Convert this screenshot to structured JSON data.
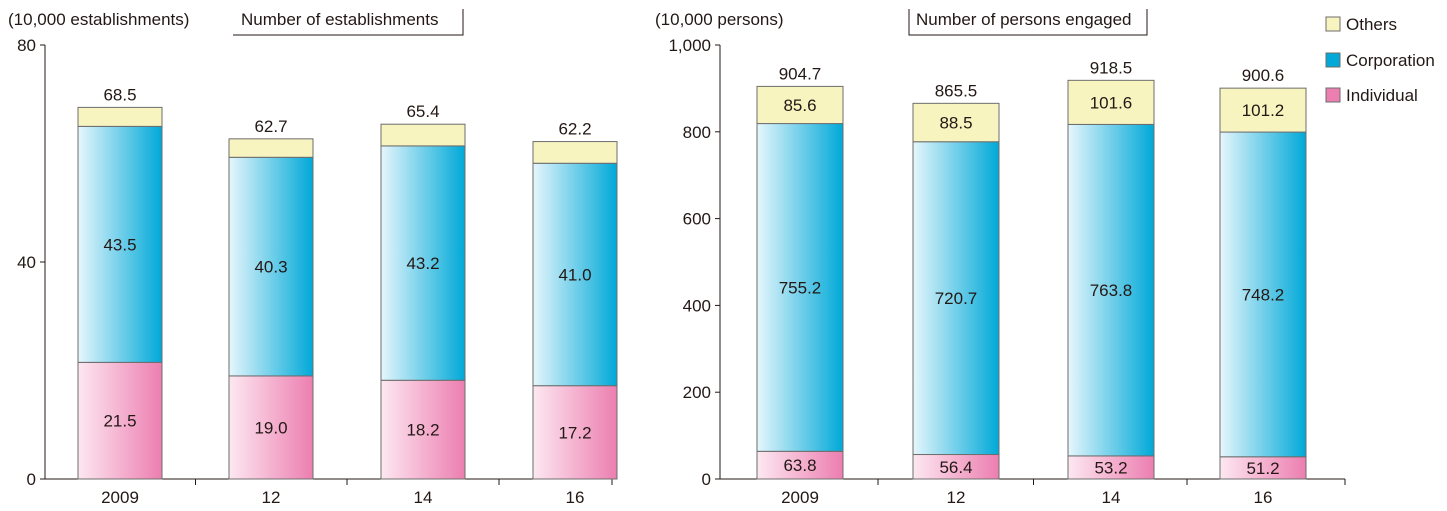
{
  "chart_data": [
    {
      "type": "bar",
      "stacked": true,
      "title": "Number of establishments",
      "ylabel": "(10,000 establishments)",
      "categories": [
        "2009",
        "12",
        "14",
        "16"
      ],
      "ylim": [
        0,
        80
      ],
      "yticks": [
        0,
        40,
        80
      ],
      "ytick_labels": [
        "0",
        "40",
        "80"
      ],
      "series": [
        {
          "name": "Individual",
          "values": [
            21.5,
            19.0,
            18.2,
            17.2
          ],
          "labels": [
            "21.5",
            "19.0",
            "18.2",
            "17.2"
          ]
        },
        {
          "name": "Corporation",
          "values": [
            43.5,
            40.3,
            43.2,
            41.0
          ],
          "labels": [
            "43.5",
            "40.3",
            "43.2",
            "41.0"
          ]
        },
        {
          "name": "Others",
          "values": [
            3.5,
            3.4,
            4.0,
            4.0
          ],
          "labels": []
        }
      ],
      "totals": [
        68.5,
        62.7,
        65.4,
        62.2
      ],
      "total_labels": [
        "68.5",
        "62.7",
        "65.4",
        "62.2"
      ]
    },
    {
      "type": "bar",
      "stacked": true,
      "title": "Number of persons engaged",
      "ylabel": "(10,000 persons)",
      "categories": [
        "2009",
        "12",
        "14",
        "16"
      ],
      "ylim": [
        0,
        1000
      ],
      "yticks": [
        0,
        200,
        400,
        600,
        800,
        1000
      ],
      "ytick_labels": [
        "0",
        "200",
        "400",
        "600",
        "800",
        "1,000"
      ],
      "series": [
        {
          "name": "Individual",
          "values": [
            63.8,
            56.4,
            53.2,
            51.2
          ],
          "labels": [
            "63.8",
            "56.4",
            "53.2",
            "51.2"
          ]
        },
        {
          "name": "Corporation",
          "values": [
            755.2,
            720.7,
            763.8,
            748.2
          ],
          "labels": [
            "755.2",
            "720.7",
            "763.8",
            "748.2"
          ]
        },
        {
          "name": "Others",
          "values": [
            85.6,
            88.5,
            101.6,
            101.2
          ],
          "labels": [
            "85.6",
            "88.5",
            "101.6",
            "101.2"
          ]
        }
      ],
      "totals": [
        904.7,
        865.5,
        918.5,
        900.6
      ],
      "total_labels": [
        "904.7",
        "865.5",
        "918.5",
        "900.6"
      ]
    }
  ],
  "legend": {
    "placement": "top-right",
    "items": [
      {
        "name": "Others",
        "color": "#f7f4c0"
      },
      {
        "name": "Corporation",
        "color": "#00a9d8"
      },
      {
        "name": "Individual",
        "color": "#ec7eb0"
      }
    ]
  },
  "colors": {
    "individual_light": "#fde8f1",
    "individual_dark": "#ec7eb0",
    "corporation_light": "#e6f6fc",
    "corporation_dark": "#00a9d8",
    "others": "#f7f4c0",
    "axis": "#231815",
    "bar_outline": "#6d6d6d"
  }
}
